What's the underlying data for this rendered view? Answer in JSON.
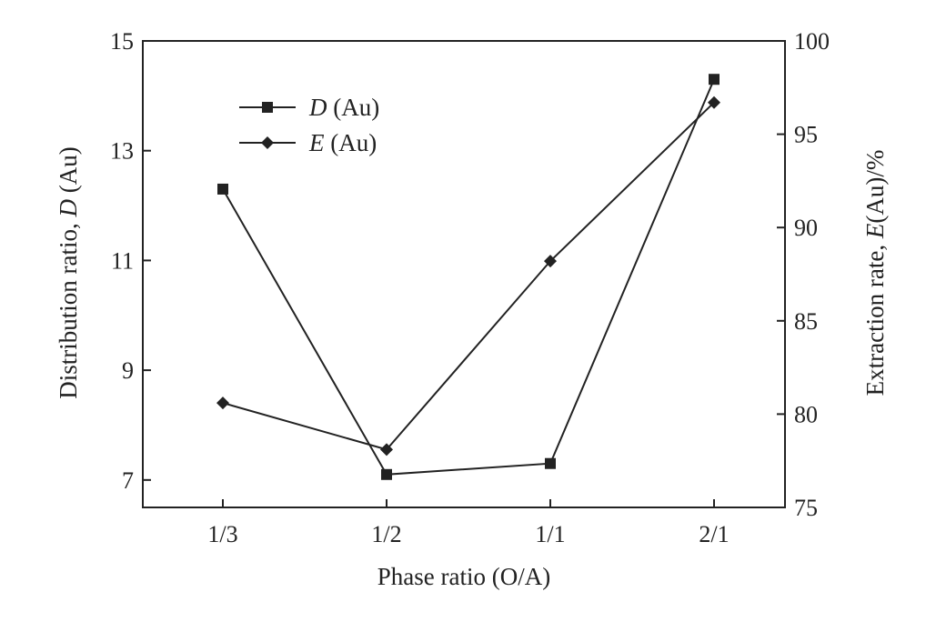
{
  "chart_data": {
    "type": "line",
    "title": "",
    "xlabel": "Phase ratio (O/A)",
    "ylabel_left": {
      "prefix": "Distribution ratio, ",
      "symbol": "D",
      "suffix": " (Au)"
    },
    "ylabel_right": {
      "prefix": "Extraction rate, ",
      "symbol": "E",
      "suffix": "(Au)/%"
    },
    "categories": [
      "1/3",
      "1/2",
      "1/1",
      "2/1"
    ],
    "ylim_left": [
      6.5,
      15
    ],
    "ylim_right": [
      75,
      100
    ],
    "yticks_left": [
      7,
      9,
      11,
      13,
      15
    ],
    "yticks_right": [
      75,
      80,
      85,
      90,
      95,
      100
    ],
    "grid": false,
    "legend_position": "top-left",
    "series": [
      {
        "name": "D",
        "name_suffix": " (Au)",
        "axis": "left",
        "marker": "square",
        "values": [
          12.3,
          7.1,
          7.3,
          14.3
        ]
      },
      {
        "name": "E",
        "name_suffix": " (Au)",
        "axis": "right",
        "marker": "diamond",
        "values": [
          80.6,
          78.1,
          88.2,
          96.7
        ]
      }
    ],
    "colors": {
      "line": "#222222",
      "marker": "#222222",
      "axis": "#222222"
    }
  }
}
